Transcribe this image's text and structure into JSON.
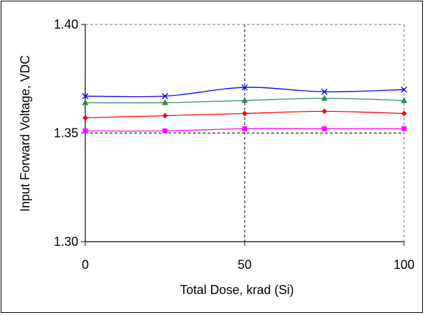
{
  "chart_data": {
    "type": "line",
    "title": "",
    "xlabel": "Total Dose, krad (Si)",
    "ylabel": "Input Forward Voltage, VDC",
    "xlim": [
      0,
      100
    ],
    "ylim": [
      1.3,
      1.4
    ],
    "x_ticks": [
      0,
      50,
      100
    ],
    "x_tick_labels": [
      "0",
      "50",
      "100"
    ],
    "y_ticks": [
      1.3,
      1.35,
      1.4
    ],
    "y_tick_labels": [
      "1.30",
      "1.35",
      "1.40"
    ],
    "grid": "dashed lines at x = 50 and y = 1.35",
    "reference_lines": {
      "x": 50,
      "y": 1.35
    },
    "legend": "none",
    "x": [
      0,
      25,
      50,
      75,
      100
    ],
    "series": [
      {
        "values": [
          1.367,
          1.367,
          1.371,
          1.369,
          1.37
        ],
        "color": "#0000ff",
        "marker": "x"
      },
      {
        "values": [
          1.364,
          1.364,
          1.365,
          1.366,
          1.365
        ],
        "color": "#2e8b57",
        "marker": "triangle"
      },
      {
        "values": [
          1.357,
          1.358,
          1.359,
          1.36,
          1.359
        ],
        "color": "#ff0000",
        "marker": "diamond"
      },
      {
        "values": [
          1.351,
          1.351,
          1.352,
          1.352,
          1.352
        ],
        "color": "#ff00ff",
        "marker": "square"
      }
    ]
  }
}
